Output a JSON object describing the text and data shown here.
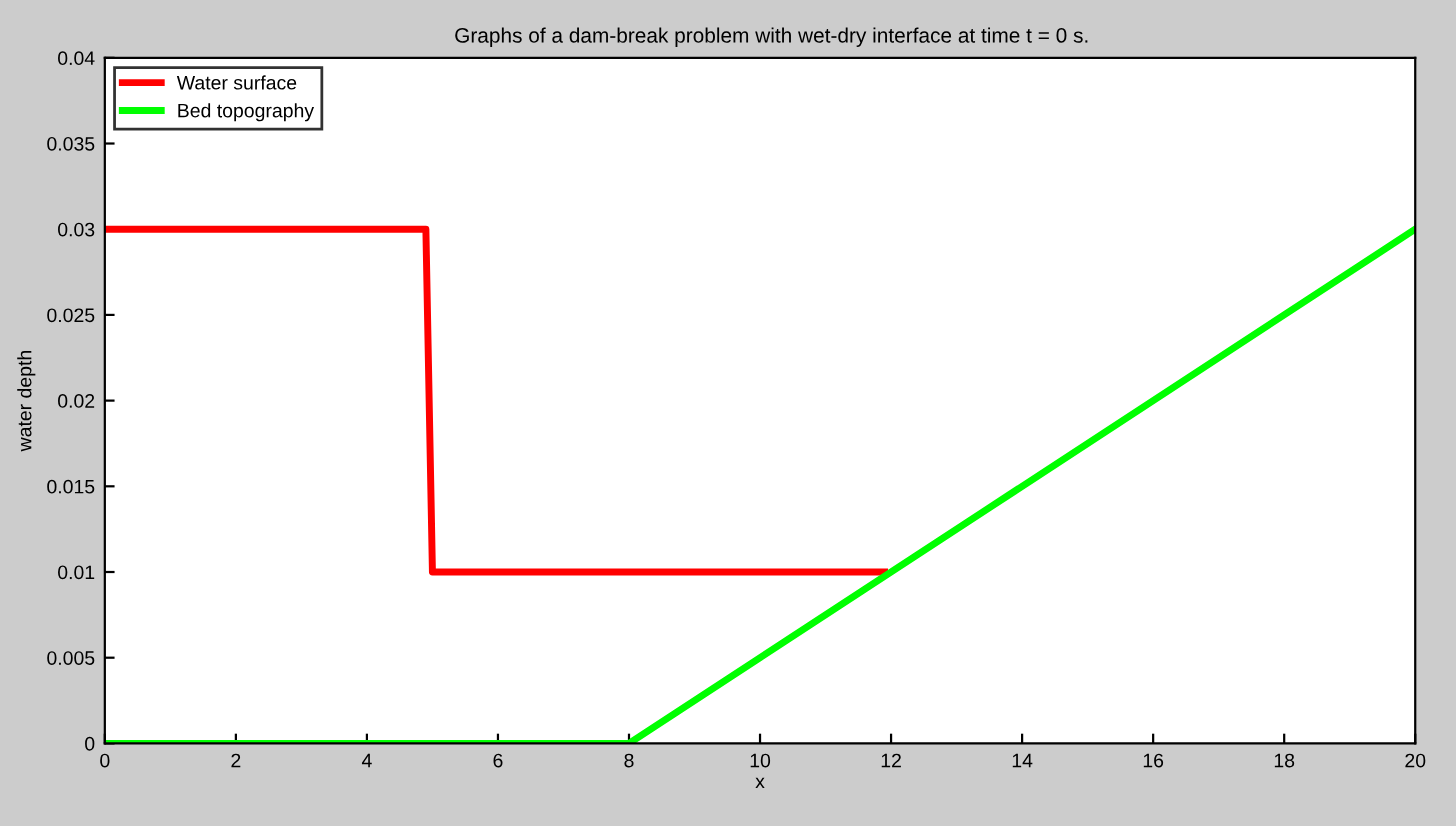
{
  "chart_data": {
    "type": "line",
    "title": "Graphs of a dam-break problem with wet-dry interface at time t = 0 s.",
    "xlabel": "x",
    "ylabel": "water depth",
    "series": [
      {
        "name": "Water surface",
        "color": "#ff0000",
        "x": [
          0,
          4.9,
          5.0,
          11.9
        ],
        "values": [
          0.03,
          0.03,
          0.01,
          0.01
        ]
      },
      {
        "name": "Bed topography",
        "color": "#00ff00",
        "x": [
          0,
          8,
          20
        ],
        "values": [
          0,
          0,
          0.03
        ]
      }
    ],
    "xlim": [
      0,
      20
    ],
    "xticks": [
      0,
      2,
      4,
      6,
      8,
      10,
      12,
      14,
      16,
      18,
      20
    ],
    "ylim": [
      0,
      0.04
    ],
    "yticks": [
      0,
      0.005,
      0.01,
      0.015,
      0.02,
      0.025,
      0.03,
      0.035,
      0.04
    ],
    "legend": "top left",
    "grid": false
  }
}
